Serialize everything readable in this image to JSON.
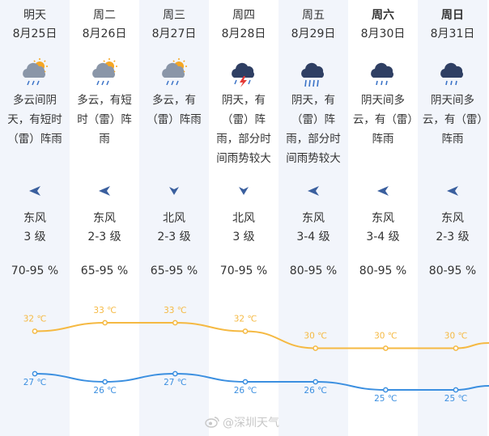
{
  "days": [
    {
      "day": "明天",
      "date": "8月25日",
      "bold": false,
      "shade": true,
      "icon": "cloudy-rain-sun-icon",
      "desc": "多云间阴天，有短时（雷）阵雨",
      "wind_dir": "west-arrow-icon",
      "wind": "东风",
      "level": "3 级",
      "humidity": "70-95 %"
    },
    {
      "day": "周二",
      "date": "8月26日",
      "bold": false,
      "shade": false,
      "icon": "cloudy-rain-sun-icon",
      "desc": "多云，有短时（雷）阵雨",
      "wind_dir": "west-arrow-icon",
      "wind": "东风",
      "level": "2-3 级",
      "humidity": "65-95 %"
    },
    {
      "day": "周三",
      "date": "8月27日",
      "bold": false,
      "shade": true,
      "icon": "cloudy-rain-sun-icon",
      "desc": "多云，有（雷）阵雨",
      "wind_dir": "south-arrow-icon",
      "wind": "北风",
      "level": "2-3 级",
      "humidity": "65-95 %"
    },
    {
      "day": "周四",
      "date": "8月28日",
      "bold": false,
      "shade": false,
      "icon": "thunderstorm-icon",
      "desc": "阴天，有（雷）阵雨，部分时间雨势较大",
      "wind_dir": "south-arrow-icon",
      "wind": "北风",
      "level": "3 级",
      "humidity": "70-95 %"
    },
    {
      "day": "周五",
      "date": "8月29日",
      "bold": false,
      "shade": true,
      "icon": "heavy-rain-icon",
      "desc": "阴天，有（雷）阵雨，部分时间雨势较大",
      "wind_dir": "west-arrow-icon",
      "wind": "东风",
      "level": "3-4 级",
      "humidity": "80-95 %"
    },
    {
      "day": "周六",
      "date": "8月30日",
      "bold": true,
      "shade": false,
      "icon": "rain-cloud-icon",
      "desc": "阴天间多云，有（雷）阵雨",
      "wind_dir": "west-arrow-icon",
      "wind": "东风",
      "level": "3-4 级",
      "humidity": "80-95 %"
    },
    {
      "day": "周日",
      "date": "8月31日",
      "bold": true,
      "shade": true,
      "icon": "rain-cloud-icon",
      "desc": "阴天间多云，有（雷）阵雨",
      "wind_dir": "west-arrow-icon",
      "wind": "东风",
      "level": "2-3 级",
      "humidity": "80-95 %"
    }
  ],
  "chart_data": {
    "type": "line",
    "x": [
      "8月25日",
      "8月26日",
      "8月27日",
      "8月28日",
      "8月29日",
      "8月30日",
      "8月31日"
    ],
    "series": [
      {
        "values": [
          32,
          33,
          33,
          32,
          30,
          30,
          30
        ],
        "labels": [
          "32 ℃",
          "33 ℃",
          "33 ℃",
          "32 ℃",
          "30 ℃",
          "30 ℃",
          "30 ℃"
        ],
        "color": "#f5b942"
      },
      {
        "values": [
          27,
          26,
          27,
          26,
          26,
          25,
          25
        ],
        "labels": [
          "27 ℃",
          "26 ℃",
          "27 ℃",
          "26 ℃",
          "26 ℃",
          "25 ℃",
          "25 ℃"
        ],
        "color": "#3b8fe0"
      }
    ]
  },
  "watermark": {
    "text": "@深圳天气",
    "icon": "weibo-icon"
  },
  "colors": {
    "icon_gray": "#8a96a8",
    "icon_dark": "#2f3f63",
    "rain_blue": "#3b73c7",
    "sun": "#f5a623",
    "bolt": "#e53935",
    "arrow": "#3a5f9e"
  }
}
